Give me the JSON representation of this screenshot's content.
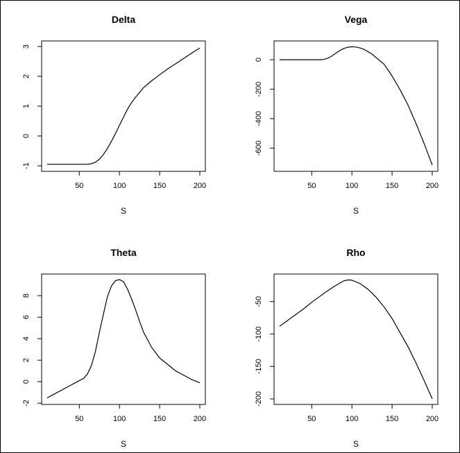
{
  "chart_data": [
    {
      "type": "line",
      "title": "Delta",
      "xlabel": "S",
      "ylabel": "",
      "xlim": [
        10,
        200
      ],
      "ylim": [
        -1,
        3
      ],
      "xticks": [
        50,
        100,
        150,
        200
      ],
      "yticks": [
        -1,
        0,
        1,
        2,
        3
      ],
      "x": [
        10,
        20,
        30,
        40,
        50,
        60,
        65,
        70,
        75,
        80,
        85,
        90,
        95,
        100,
        105,
        110,
        115,
        120,
        125,
        130,
        140,
        150,
        160,
        170,
        180,
        190,
        200
      ],
      "y": [
        -0.95,
        -0.95,
        -0.95,
        -0.95,
        -0.95,
        -0.95,
        -0.93,
        -0.88,
        -0.78,
        -0.62,
        -0.42,
        -0.18,
        0.08,
        0.36,
        0.63,
        0.9,
        1.12,
        1.3,
        1.46,
        1.62,
        1.85,
        2.05,
        2.25,
        2.42,
        2.6,
        2.78,
        2.95
      ]
    },
    {
      "type": "line",
      "title": "Vega",
      "xlabel": "S",
      "ylabel": "",
      "xlim": [
        10,
        200
      ],
      "ylim": [
        -720,
        90
      ],
      "xticks": [
        50,
        100,
        150,
        200
      ],
      "yticks": [
        0,
        -200,
        -400,
        -600
      ],
      "x": [
        10,
        20,
        30,
        40,
        50,
        60,
        65,
        70,
        75,
        80,
        85,
        90,
        95,
        100,
        105,
        110,
        115,
        120,
        125,
        130,
        140,
        150,
        160,
        170,
        180,
        190,
        200
      ],
      "y": [
        0,
        0,
        0,
        0,
        0,
        0,
        2,
        10,
        25,
        45,
        62,
        77,
        85,
        88,
        86,
        80,
        70,
        55,
        38,
        15,
        -30,
        -110,
        -205,
        -310,
        -435,
        -570,
        -715
      ]
    },
    {
      "type": "line",
      "title": "Theta",
      "xlabel": "S",
      "ylabel": "",
      "xlim": [
        10,
        200
      ],
      "ylim": [
        -1.6,
        9.5
      ],
      "xticks": [
        50,
        100,
        150,
        200
      ],
      "yticks": [
        -2,
        0,
        2,
        4,
        6,
        8
      ],
      "x": [
        10,
        20,
        30,
        40,
        50,
        55,
        60,
        65,
        70,
        75,
        80,
        85,
        90,
        95,
        100,
        105,
        110,
        115,
        120,
        125,
        130,
        140,
        150,
        160,
        170,
        180,
        190,
        200
      ],
      "y": [
        -1.5,
        -1.1,
        -0.7,
        -0.3,
        0.1,
        0.3,
        0.7,
        1.5,
        2.8,
        4.6,
        6.3,
        7.9,
        8.9,
        9.4,
        9.5,
        9.3,
        8.6,
        7.7,
        6.7,
        5.6,
        4.6,
        3.2,
        2.2,
        1.6,
        1.0,
        0.6,
        0.2,
        -0.1
      ]
    },
    {
      "type": "line",
      "title": "Rho",
      "xlabel": "S",
      "ylabel": "",
      "xlim": [
        10,
        200
      ],
      "ylim": [
        -200,
        -16
      ],
      "xticks": [
        50,
        100,
        150,
        200
      ],
      "yticks": [
        -50,
        -100,
        -150,
        -200
      ],
      "x": [
        10,
        20,
        30,
        40,
        50,
        60,
        70,
        80,
        90,
        95,
        100,
        110,
        120,
        130,
        140,
        150,
        160,
        170,
        180,
        190,
        200
      ],
      "y": [
        -88,
        -79,
        -70,
        -61,
        -51,
        -42,
        -33,
        -25,
        -18,
        -16.5,
        -17,
        -22,
        -31,
        -43,
        -58,
        -76,
        -98,
        -120,
        -145,
        -172,
        -200
      ]
    }
  ]
}
